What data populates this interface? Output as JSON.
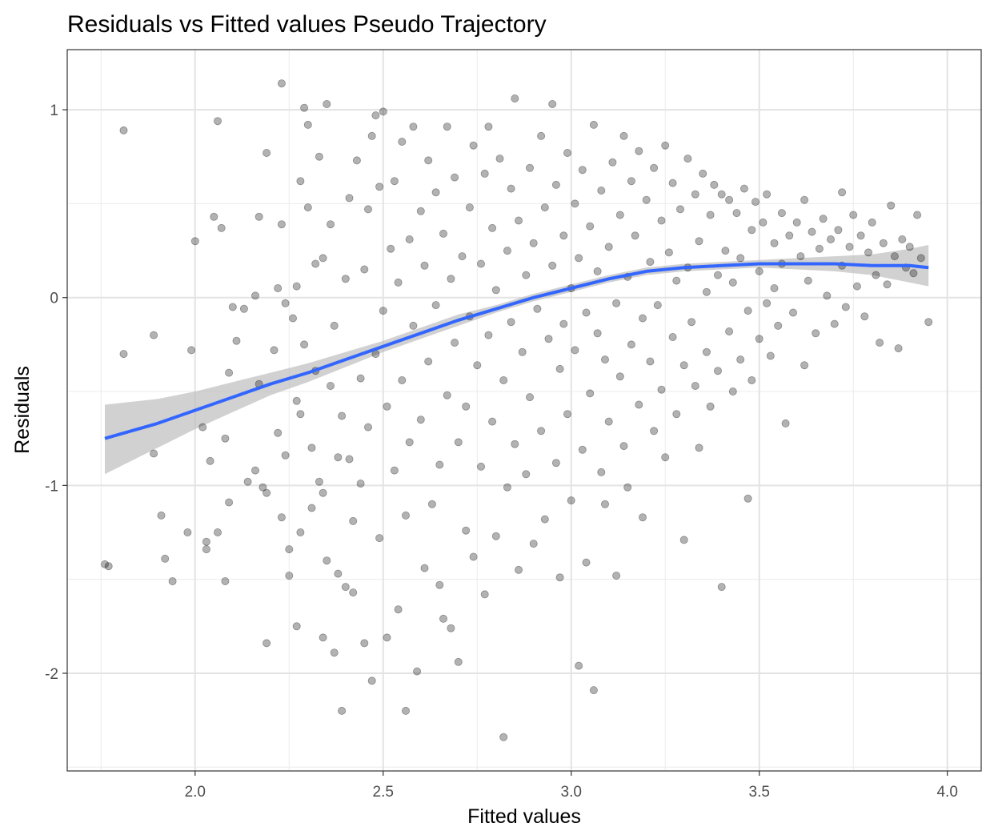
{
  "chart_data": {
    "type": "scatter",
    "title": "Residuals vs Fitted values Pseudo Trajectory",
    "xlabel": "Fitted values",
    "ylabel": "Residuals",
    "xlim": [
      1.66,
      4.09
    ],
    "ylim": [
      -2.52,
      1.32
    ],
    "x_ticks": [
      2.0,
      2.5,
      3.0,
      3.5,
      4.0
    ],
    "x_tick_labels": [
      "2.0",
      "2.5",
      "3.0",
      "3.5",
      "4.0"
    ],
    "y_ticks": [
      -2,
      -1,
      0,
      1
    ],
    "y_tick_labels": [
      "-2",
      "-1",
      "0",
      "1"
    ],
    "grid": true,
    "point_color": "#000000",
    "point_opacity": 0.3,
    "smooth_color": "#3366ff",
    "ci_color": "#bdbdbd",
    "points": [
      [
        1.76,
        -1.42
      ],
      [
        1.77,
        -1.43
      ],
      [
        1.81,
        -0.3
      ],
      [
        1.81,
        0.89
      ],
      [
        1.89,
        -0.2
      ],
      [
        1.89,
        -0.83
      ],
      [
        1.91,
        -1.16
      ],
      [
        1.92,
        -1.39
      ],
      [
        1.94,
        -1.51
      ],
      [
        1.98,
        -1.25
      ],
      [
        1.99,
        -0.28
      ],
      [
        2.0,
        0.3
      ],
      [
        2.02,
        -0.69
      ],
      [
        2.03,
        -1.3
      ],
      [
        2.03,
        -1.34
      ],
      [
        2.04,
        -0.87
      ],
      [
        2.05,
        0.43
      ],
      [
        2.06,
        -1.25
      ],
      [
        2.06,
        0.94
      ],
      [
        2.07,
        0.37
      ],
      [
        2.08,
        -0.75
      ],
      [
        2.08,
        -1.51
      ],
      [
        2.09,
        -0.4
      ],
      [
        2.09,
        -1.09
      ],
      [
        2.1,
        -0.05
      ],
      [
        2.11,
        -0.23
      ],
      [
        2.13,
        -0.06
      ],
      [
        2.14,
        -0.98
      ],
      [
        2.16,
        0.01
      ],
      [
        2.16,
        -0.92
      ],
      [
        2.17,
        0.43
      ],
      [
        2.17,
        -0.46
      ],
      [
        2.18,
        -1.01
      ],
      [
        2.19,
        0.77
      ],
      [
        2.19,
        -1.04
      ],
      [
        2.19,
        -1.84
      ],
      [
        2.21,
        -0.28
      ],
      [
        2.22,
        0.05
      ],
      [
        2.22,
        -0.72
      ],
      [
        2.23,
        -1.17
      ],
      [
        2.23,
        0.39
      ],
      [
        2.23,
        1.14
      ],
      [
        2.24,
        -0.03
      ],
      [
        2.24,
        -0.84
      ],
      [
        2.25,
        -1.34
      ],
      [
        2.25,
        -1.48
      ],
      [
        2.26,
        -0.11
      ],
      [
        2.27,
        -0.55
      ],
      [
        2.27,
        0.06
      ],
      [
        2.27,
        -1.75
      ],
      [
        2.28,
        0.62
      ],
      [
        2.28,
        -0.62
      ],
      [
        2.28,
        -1.25
      ],
      [
        2.29,
        1.01
      ],
      [
        2.29,
        -0.25
      ],
      [
        2.3,
        0.48
      ],
      [
        2.3,
        0.92
      ],
      [
        2.31,
        -0.8
      ],
      [
        2.31,
        -1.12
      ],
      [
        2.32,
        0.18
      ],
      [
        2.32,
        -0.39
      ],
      [
        2.33,
        0.75
      ],
      [
        2.33,
        -0.98
      ],
      [
        2.34,
        -1.04
      ],
      [
        2.34,
        -1.81
      ],
      [
        2.34,
        0.21
      ],
      [
        2.35,
        1.03
      ],
      [
        2.35,
        -1.4
      ],
      [
        2.36,
        -0.47
      ],
      [
        2.36,
        0.39
      ],
      [
        2.37,
        -0.15
      ],
      [
        2.37,
        -1.89
      ],
      [
        2.38,
        -0.85
      ],
      [
        2.38,
        -1.47
      ],
      [
        2.39,
        -0.63
      ],
      [
        2.39,
        -2.2
      ],
      [
        2.4,
        0.1
      ],
      [
        2.4,
        -1.54
      ],
      [
        2.41,
        -0.86
      ],
      [
        2.41,
        0.53
      ],
      [
        2.42,
        -1.19
      ],
      [
        2.42,
        -1.57
      ],
      [
        2.43,
        0.73
      ],
      [
        2.44,
        -0.43
      ],
      [
        2.44,
        -0.99
      ],
      [
        2.45,
        0.15
      ],
      [
        2.45,
        -1.84
      ],
      [
        2.46,
        -0.69
      ],
      [
        2.46,
        0.47
      ],
      [
        2.47,
        -2.04
      ],
      [
        2.47,
        0.86
      ],
      [
        2.48,
        0.97
      ],
      [
        2.48,
        -0.3
      ],
      [
        2.49,
        -1.28
      ],
      [
        2.49,
        0.59
      ],
      [
        2.5,
        0.99
      ],
      [
        2.5,
        -0.07
      ],
      [
        2.51,
        -1.81
      ],
      [
        2.51,
        -0.58
      ],
      [
        2.52,
        0.26
      ],
      [
        2.53,
        -0.92
      ],
      [
        2.53,
        0.62
      ],
      [
        2.54,
        -1.66
      ],
      [
        2.54,
        0.08
      ],
      [
        2.55,
        -0.44
      ],
      [
        2.55,
        0.83
      ],
      [
        2.56,
        -1.16
      ],
      [
        2.56,
        -2.2
      ],
      [
        2.57,
        0.31
      ],
      [
        2.57,
        -0.77
      ],
      [
        2.58,
        0.91
      ],
      [
        2.58,
        -0.15
      ],
      [
        2.59,
        -1.99
      ],
      [
        2.6,
        0.46
      ],
      [
        2.6,
        -0.65
      ],
      [
        2.61,
        -1.44
      ],
      [
        2.61,
        0.17
      ],
      [
        2.62,
        -0.34
      ],
      [
        2.62,
        0.73
      ],
      [
        2.63,
        -1.1
      ],
      [
        2.64,
        -0.04
      ],
      [
        2.64,
        0.56
      ],
      [
        2.65,
        -0.89
      ],
      [
        2.65,
        -1.53
      ],
      [
        2.66,
        0.34
      ],
      [
        2.66,
        -1.71
      ],
      [
        2.67,
        -0.52
      ],
      [
        2.67,
        0.91
      ],
      [
        2.68,
        -1.76
      ],
      [
        2.68,
        0.1
      ],
      [
        2.69,
        -0.24
      ],
      [
        2.69,
        0.64
      ],
      [
        2.7,
        -0.77
      ],
      [
        2.7,
        -1.94
      ],
      [
        2.71,
        0.22
      ],
      [
        2.72,
        -1.24
      ],
      [
        2.72,
        -0.58
      ],
      [
        2.73,
        0.48
      ],
      [
        2.73,
        -0.1
      ],
      [
        2.74,
        0.81
      ],
      [
        2.74,
        -1.38
      ],
      [
        2.75,
        -0.36
      ],
      [
        2.76,
        0.18
      ],
      [
        2.76,
        -0.9
      ],
      [
        2.77,
        0.66
      ],
      [
        2.77,
        -1.58
      ],
      [
        2.78,
        -0.2
      ],
      [
        2.78,
        0.91
      ],
      [
        2.79,
        0.37
      ],
      [
        2.79,
        -0.66
      ],
      [
        2.8,
        -1.27
      ],
      [
        2.8,
        0.04
      ],
      [
        2.81,
        0.74
      ],
      [
        2.82,
        -0.44
      ],
      [
        2.82,
        -2.34
      ],
      [
        2.83,
        0.25
      ],
      [
        2.83,
        -1.01
      ],
      [
        2.84,
        0.58
      ],
      [
        2.84,
        -0.13
      ],
      [
        2.85,
        -0.78
      ],
      [
        2.85,
        1.06
      ],
      [
        2.86,
        0.41
      ],
      [
        2.86,
        -1.45
      ],
      [
        2.87,
        -0.29
      ],
      [
        2.88,
        0.12
      ],
      [
        2.88,
        -0.94
      ],
      [
        2.89,
        0.69
      ],
      [
        2.89,
        -0.53
      ],
      [
        2.9,
        -1.31
      ],
      [
        2.9,
        0.29
      ],
      [
        2.91,
        -0.06
      ],
      [
        2.92,
        0.86
      ],
      [
        2.92,
        -0.71
      ],
      [
        2.93,
        0.48
      ],
      [
        2.93,
        -1.18
      ],
      [
        2.94,
        -0.22
      ],
      [
        2.95,
        0.17
      ],
      [
        2.95,
        1.03
      ],
      [
        2.96,
        -0.88
      ],
      [
        2.96,
        0.6
      ],
      [
        2.97,
        -0.38
      ],
      [
        2.97,
        -1.49
      ],
      [
        2.98,
        0.33
      ],
      [
        2.98,
        -0.14
      ],
      [
        2.99,
        0.77
      ],
      [
        2.99,
        -0.62
      ],
      [
        3.0,
        0.05
      ],
      [
        3.0,
        -1.08
      ],
      [
        3.01,
        0.5
      ],
      [
        3.01,
        -0.28
      ],
      [
        3.02,
        -1.96
      ],
      [
        3.02,
        0.21
      ],
      [
        3.03,
        -0.81
      ],
      [
        3.03,
        0.68
      ],
      [
        3.04,
        -0.08
      ],
      [
        3.04,
        -1.41
      ],
      [
        3.05,
        0.38
      ],
      [
        3.05,
        -0.51
      ],
      [
        3.06,
        -2.09
      ],
      [
        3.06,
        0.92
      ],
      [
        3.07,
        -0.19
      ],
      [
        3.07,
        0.14
      ],
      [
        3.08,
        -0.93
      ],
      [
        3.08,
        0.57
      ],
      [
        3.09,
        -0.33
      ],
      [
        3.09,
        -1.1
      ],
      [
        3.1,
        0.27
      ],
      [
        3.1,
        -0.66
      ],
      [
        3.11,
        0.72
      ],
      [
        3.12,
        -0.03
      ],
      [
        3.12,
        -1.48
      ],
      [
        3.13,
        0.44
      ],
      [
        3.13,
        -0.42
      ],
      [
        3.14,
        0.86
      ],
      [
        3.14,
        -0.79
      ],
      [
        3.15,
        0.11
      ],
      [
        3.15,
        -1.01
      ],
      [
        3.16,
        0.62
      ],
      [
        3.16,
        -0.25
      ],
      [
        3.17,
        0.33
      ],
      [
        3.18,
        -0.57
      ],
      [
        3.18,
        0.78
      ],
      [
        3.19,
        -0.11
      ],
      [
        3.19,
        -1.17
      ],
      [
        3.2,
        0.52
      ],
      [
        3.21,
        -0.34
      ],
      [
        3.21,
        0.19
      ],
      [
        3.22,
        -0.71
      ],
      [
        3.22,
        0.69
      ],
      [
        3.23,
        -0.04
      ],
      [
        3.24,
        0.41
      ],
      [
        3.24,
        -0.49
      ],
      [
        3.25,
        0.81
      ],
      [
        3.25,
        -0.85
      ],
      [
        3.26,
        0.24
      ],
      [
        3.27,
        -0.21
      ],
      [
        3.27,
        0.61
      ],
      [
        3.28,
        -0.62
      ],
      [
        3.28,
        0.09
      ],
      [
        3.29,
        0.47
      ],
      [
        3.3,
        -0.36
      ],
      [
        3.3,
        -1.29
      ],
      [
        3.31,
        0.74
      ],
      [
        3.31,
        0.16
      ],
      [
        3.32,
        -0.13
      ],
      [
        3.33,
        0.55
      ],
      [
        3.33,
        -0.47
      ],
      [
        3.34,
        0.3
      ],
      [
        3.34,
        -0.8
      ],
      [
        3.35,
        0.66
      ],
      [
        3.36,
        0.03
      ],
      [
        3.36,
        -0.29
      ],
      [
        3.37,
        0.44
      ],
      [
        3.37,
        -0.58
      ],
      [
        3.38,
        0.6
      ],
      [
        3.39,
        0.12
      ],
      [
        3.39,
        -0.39
      ],
      [
        3.4,
        0.55
      ],
      [
        3.4,
        -1.54
      ],
      [
        3.41,
        0.25
      ],
      [
        3.42,
        -0.18
      ],
      [
        3.42,
        0.52
      ],
      [
        3.43,
        -0.5
      ],
      [
        3.43,
        0.08
      ],
      [
        3.44,
        0.45
      ],
      [
        3.45,
        -0.33
      ],
      [
        3.45,
        0.21
      ],
      [
        3.46,
        0.58
      ],
      [
        3.47,
        -0.07
      ],
      [
        3.47,
        -1.07
      ],
      [
        3.48,
        0.36
      ],
      [
        3.48,
        -0.44
      ],
      [
        3.49,
        0.51
      ],
      [
        3.5,
        0.14
      ],
      [
        3.5,
        -0.22
      ],
      [
        3.51,
        0.4
      ],
      [
        3.52,
        -0.03
      ],
      [
        3.52,
        0.55
      ],
      [
        3.53,
        -0.31
      ],
      [
        3.54,
        0.29
      ],
      [
        3.54,
        0.05
      ],
      [
        3.55,
        -0.15
      ],
      [
        3.56,
        0.45
      ],
      [
        3.56,
        0.18
      ],
      [
        3.57,
        -0.67
      ],
      [
        3.58,
        0.33
      ],
      [
        3.59,
        -0.08
      ],
      [
        3.6,
        0.4
      ],
      [
        3.61,
        0.22
      ],
      [
        3.62,
        -0.36
      ],
      [
        3.62,
        0.52
      ],
      [
        3.63,
        0.09
      ],
      [
        3.64,
        0.35
      ],
      [
        3.65,
        -0.19
      ],
      [
        3.66,
        0.26
      ],
      [
        3.67,
        0.42
      ],
      [
        3.68,
        0.01
      ],
      [
        3.69,
        0.31
      ],
      [
        3.7,
        -0.14
      ],
      [
        3.71,
        0.36
      ],
      [
        3.72,
        0.17
      ],
      [
        3.72,
        0.56
      ],
      [
        3.73,
        -0.05
      ],
      [
        3.74,
        0.27
      ],
      [
        3.75,
        0.44
      ],
      [
        3.76,
        0.06
      ],
      [
        3.77,
        0.33
      ],
      [
        3.78,
        -0.1
      ],
      [
        3.79,
        0.24
      ],
      [
        3.8,
        0.4
      ],
      [
        3.81,
        0.12
      ],
      [
        3.82,
        -0.24
      ],
      [
        3.83,
        0.29
      ],
      [
        3.84,
        0.07
      ],
      [
        3.85,
        0.49
      ],
      [
        3.86,
        0.22
      ],
      [
        3.87,
        -0.27
      ],
      [
        3.88,
        0.31
      ],
      [
        3.89,
        0.16
      ],
      [
        3.9,
        0.27
      ],
      [
        3.91,
        0.13
      ],
      [
        3.92,
        0.44
      ],
      [
        3.93,
        0.21
      ],
      [
        3.95,
        -0.13
      ]
    ],
    "smooth": [
      [
        1.76,
        -0.75
      ],
      [
        1.9,
        -0.67
      ],
      [
        2.0,
        -0.6
      ],
      [
        2.1,
        -0.53
      ],
      [
        2.2,
        -0.46
      ],
      [
        2.3,
        -0.4
      ],
      [
        2.4,
        -0.33
      ],
      [
        2.5,
        -0.26
      ],
      [
        2.6,
        -0.19
      ],
      [
        2.7,
        -0.12
      ],
      [
        2.8,
        -0.06
      ],
      [
        2.9,
        0.0
      ],
      [
        3.0,
        0.05
      ],
      [
        3.1,
        0.1
      ],
      [
        3.2,
        0.14
      ],
      [
        3.3,
        0.16
      ],
      [
        3.4,
        0.17
      ],
      [
        3.5,
        0.18
      ],
      [
        3.6,
        0.18
      ],
      [
        3.7,
        0.18
      ],
      [
        3.8,
        0.17
      ],
      [
        3.9,
        0.17
      ],
      [
        3.95,
        0.16
      ]
    ],
    "smooth_ci": [
      [
        1.76,
        -0.94,
        -0.57
      ],
      [
        1.9,
        -0.8,
        -0.54
      ],
      [
        2.0,
        -0.7,
        -0.5
      ],
      [
        2.1,
        -0.61,
        -0.45
      ],
      [
        2.2,
        -0.52,
        -0.4
      ],
      [
        2.3,
        -0.45,
        -0.35
      ],
      [
        2.4,
        -0.37,
        -0.29
      ],
      [
        2.5,
        -0.29,
        -0.23
      ],
      [
        2.6,
        -0.22,
        -0.16
      ],
      [
        2.7,
        -0.15,
        -0.09
      ],
      [
        2.8,
        -0.08,
        -0.04
      ],
      [
        2.9,
        -0.02,
        0.02
      ],
      [
        3.0,
        0.03,
        0.07
      ],
      [
        3.1,
        0.08,
        0.12
      ],
      [
        3.2,
        0.12,
        0.16
      ],
      [
        3.3,
        0.14,
        0.18
      ],
      [
        3.4,
        0.15,
        0.19
      ],
      [
        3.5,
        0.16,
        0.2
      ],
      [
        3.6,
        0.15,
        0.21
      ],
      [
        3.7,
        0.14,
        0.22
      ],
      [
        3.8,
        0.12,
        0.23
      ],
      [
        3.9,
        0.08,
        0.26
      ],
      [
        3.95,
        0.06,
        0.28
      ]
    ]
  }
}
